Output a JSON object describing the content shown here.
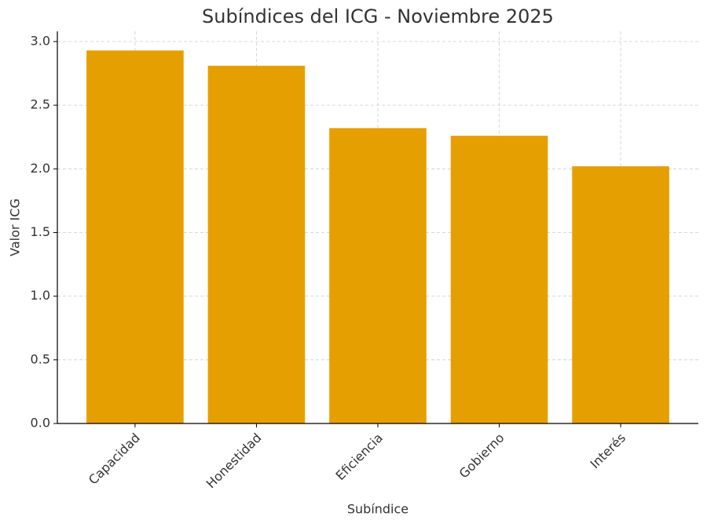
{
  "chart_data": {
    "type": "bar",
    "title": "Subíndices del ICG - Noviembre 2025",
    "x_label": "Subíndice",
    "y_label": "Valor ICG",
    "categories": [
      "Capacidad",
      "Honestidad",
      "Eficiencia",
      "Gobierno",
      "Interés"
    ],
    "values": [
      2.93,
      2.81,
      2.32,
      2.26,
      2.02
    ],
    "color": "#e69f00",
    "ylim": [
      0,
      3.08
    ],
    "yticks": [
      {
        "value": 0,
        "label": "0.0"
      },
      {
        "value": 0.5,
        "label": "0.5"
      },
      {
        "value": 1,
        "label": "1.0"
      },
      {
        "value": 1.5,
        "label": "1.5"
      },
      {
        "value": 2,
        "label": "2.0"
      },
      {
        "value": 2.5,
        "label": "2.5"
      },
      {
        "value": 3,
        "label": "3.0"
      }
    ],
    "grid": true
  }
}
